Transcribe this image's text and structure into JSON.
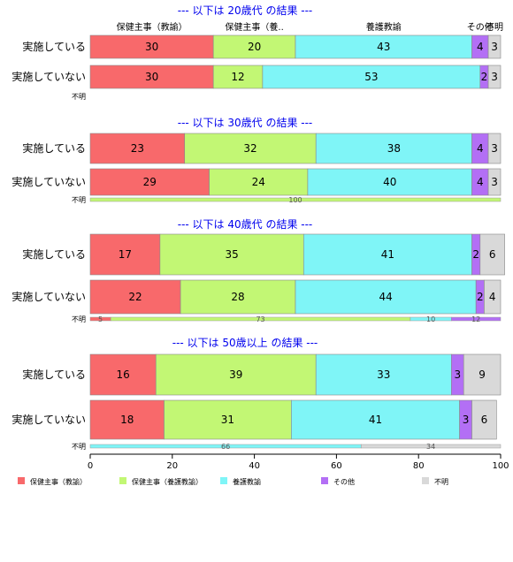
{
  "chart_data": {
    "type": "bar",
    "orientation": "horizontal",
    "stacked": "percent",
    "xlim": [
      0,
      100
    ],
    "xticks": [
      "0",
      "20",
      "40",
      "60",
      "80",
      "100"
    ],
    "categories": [
      "保健主事（教諭）",
      "保健主事（養護教諭）",
      "養護教諭",
      "その他",
      "不明"
    ],
    "category_top_labels": [
      "保健主事（教諭）",
      "保健主事（養..",
      "養護教諭",
      "その他",
      "不明"
    ],
    "colors": [
      "#f8696b",
      "#c2f774",
      "#7ff5f7",
      "#b36ff5",
      "#d9d9d9"
    ],
    "unknown_row_label": "不明",
    "panels": [
      {
        "title": "--- 以下は 20歳代 の結果 ---",
        "rows": [
          {
            "label": "実施している",
            "values": [
              30,
              20,
              43,
              4,
              3
            ]
          },
          {
            "label": "実施していない",
            "values": [
              30,
              12,
              53,
              2,
              3
            ]
          }
        ],
        "unknown": []
      },
      {
        "title": "--- 以下は 30歳代 の結果 ---",
        "rows": [
          {
            "label": "実施している",
            "values": [
              23,
              32,
              38,
              4,
              3
            ]
          },
          {
            "label": "実施していない",
            "values": [
              29,
              24,
              40,
              4,
              3
            ]
          }
        ],
        "unknown": [
          {
            "cat": 1,
            "value": 100
          }
        ]
      },
      {
        "title": "--- 以下は 40歳代 の結果 ---",
        "rows": [
          {
            "label": "実施している",
            "values": [
              17,
              35,
              41,
              2,
              6
            ]
          },
          {
            "label": "実施していない",
            "values": [
              22,
              28,
              44,
              2,
              4
            ]
          }
        ],
        "unknown": [
          {
            "cat": 0,
            "value": 5
          },
          {
            "cat": 1,
            "value": 73
          },
          {
            "cat": 2,
            "value": 10
          },
          {
            "cat": 3,
            "value": 12
          }
        ]
      },
      {
        "title": "--- 以下は 50歳以上 の結果 ---",
        "rows": [
          {
            "label": "実施している",
            "values": [
              16,
              39,
              33,
              3,
              9
            ]
          },
          {
            "label": "実施していない",
            "values": [
              18,
              31,
              41,
              3,
              6
            ]
          }
        ],
        "unknown": [
          {
            "cat": 2,
            "value": 66
          },
          {
            "cat": 4,
            "value": 34
          }
        ]
      }
    ],
    "legend_position": "bottom"
  }
}
